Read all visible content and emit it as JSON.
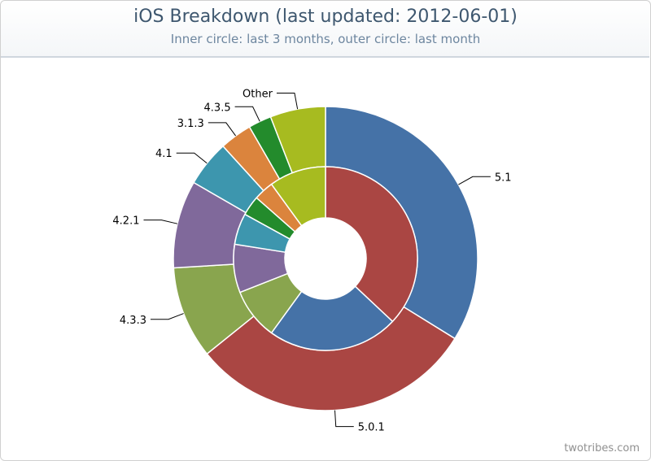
{
  "chart_data": {
    "type": "pie",
    "subtype": "double-donut",
    "title": "iOS Breakdown (last updated: 2012-06-01)",
    "subtitle": "Inner circle: last 3 months, outer circle: last month",
    "inner": {
      "slices": [
        {
          "label": "5.1",
          "value": 37.0,
          "color": "#aa4643"
        },
        {
          "label": "5.0.1",
          "value": 23.0,
          "color": "#4572a7"
        },
        {
          "label": "4.3.3",
          "value": 9.0,
          "color": "#89a54e"
        },
        {
          "label": "4.2.1",
          "value": 8.5,
          "color": "#80699b"
        },
        {
          "label": "4.1",
          "value": 5.5,
          "color": "#3d96ae"
        },
        {
          "label": "4.3.5",
          "value": 3.5,
          "color": "#238b2c"
        },
        {
          "label": "3.1.3",
          "value": 3.5,
          "color": "#db843d"
        },
        {
          "label": "Other",
          "value": 10.0,
          "color": "#a7bb20"
        }
      ]
    },
    "outer": {
      "slices": [
        {
          "label": "5.1",
          "value": 34.5,
          "color": "#4572a7"
        },
        {
          "label": "5.0.1",
          "value": 31.0,
          "color": "#aa4643"
        },
        {
          "label": "4.3.3",
          "value": 10.0,
          "color": "#89a54e"
        },
        {
          "label": "4.2.1",
          "value": 9.5,
          "color": "#80699b"
        },
        {
          "label": "4.1",
          "value": 5.0,
          "color": "#3d96ae"
        },
        {
          "label": "3.1.3",
          "value": 3.5,
          "color": "#db843d"
        },
        {
          "label": "4.3.5",
          "value": 2.5,
          "color": "#238b2c"
        },
        {
          "label": "Other",
          "value": 6.0,
          "color": "#a7bb20"
        }
      ]
    }
  },
  "credit": "twotribes.com"
}
